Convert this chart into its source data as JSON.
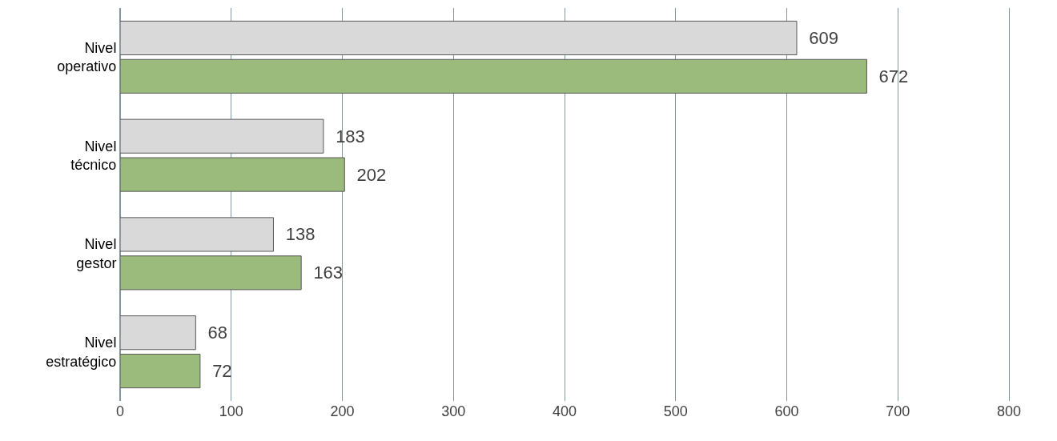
{
  "chart_data": {
    "type": "bar",
    "orientation": "horizontal",
    "categories": [
      "Nivel\noperativo",
      "Nivel\ntécnico",
      "Nivel\ngestor",
      "Nivel\nestratégico"
    ],
    "series": [
      {
        "color": "#d9d9d9",
        "values": [
          609,
          183,
          138,
          68
        ]
      },
      {
        "color": "#9bbb7c",
        "values": [
          672,
          202,
          163,
          72
        ]
      }
    ],
    "xlim": [
      0,
      800
    ],
    "xticks": [
      0,
      100,
      200,
      300,
      400,
      500,
      600,
      700,
      800
    ],
    "grid": "x",
    "data_labels": true,
    "legend": false
  }
}
